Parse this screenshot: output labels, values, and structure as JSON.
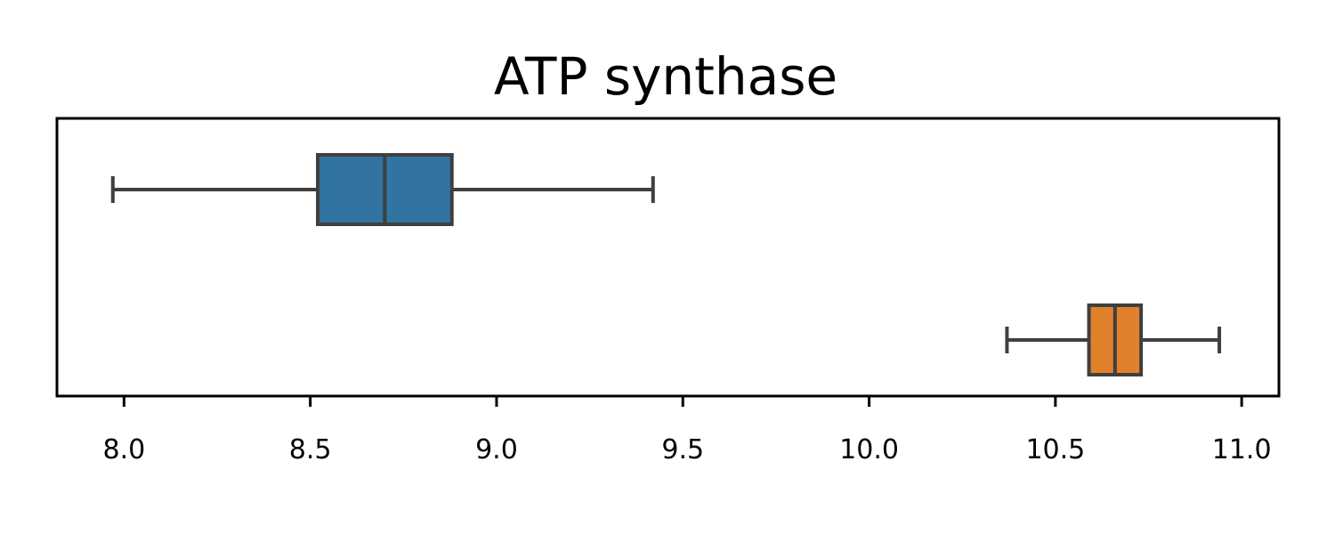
{
  "chart_data": {
    "type": "boxplot",
    "orientation": "horizontal",
    "title": "ATP synthase",
    "xlabel": "",
    "ylabel": "",
    "xlim": [
      7.82,
      11.1
    ],
    "xticks": [
      8.0,
      8.5,
      9.0,
      9.5,
      10.0,
      10.5,
      11.0
    ],
    "xtick_labels": [
      "8.0",
      "8.5",
      "9.0",
      "9.5",
      "10.0",
      "10.5",
      "11.0"
    ],
    "grid": false,
    "legend": "none",
    "series": [
      {
        "color": "#3274a1",
        "whisker_low": 7.97,
        "q1": 8.52,
        "median": 8.7,
        "q3": 8.88,
        "whisker_high": 9.42
      },
      {
        "color": "#e1812c",
        "whisker_low": 10.37,
        "q1": 10.59,
        "median": 10.66,
        "q3": 10.73,
        "whisker_high": 10.94
      }
    ],
    "line_color": "#3f3f3f"
  }
}
